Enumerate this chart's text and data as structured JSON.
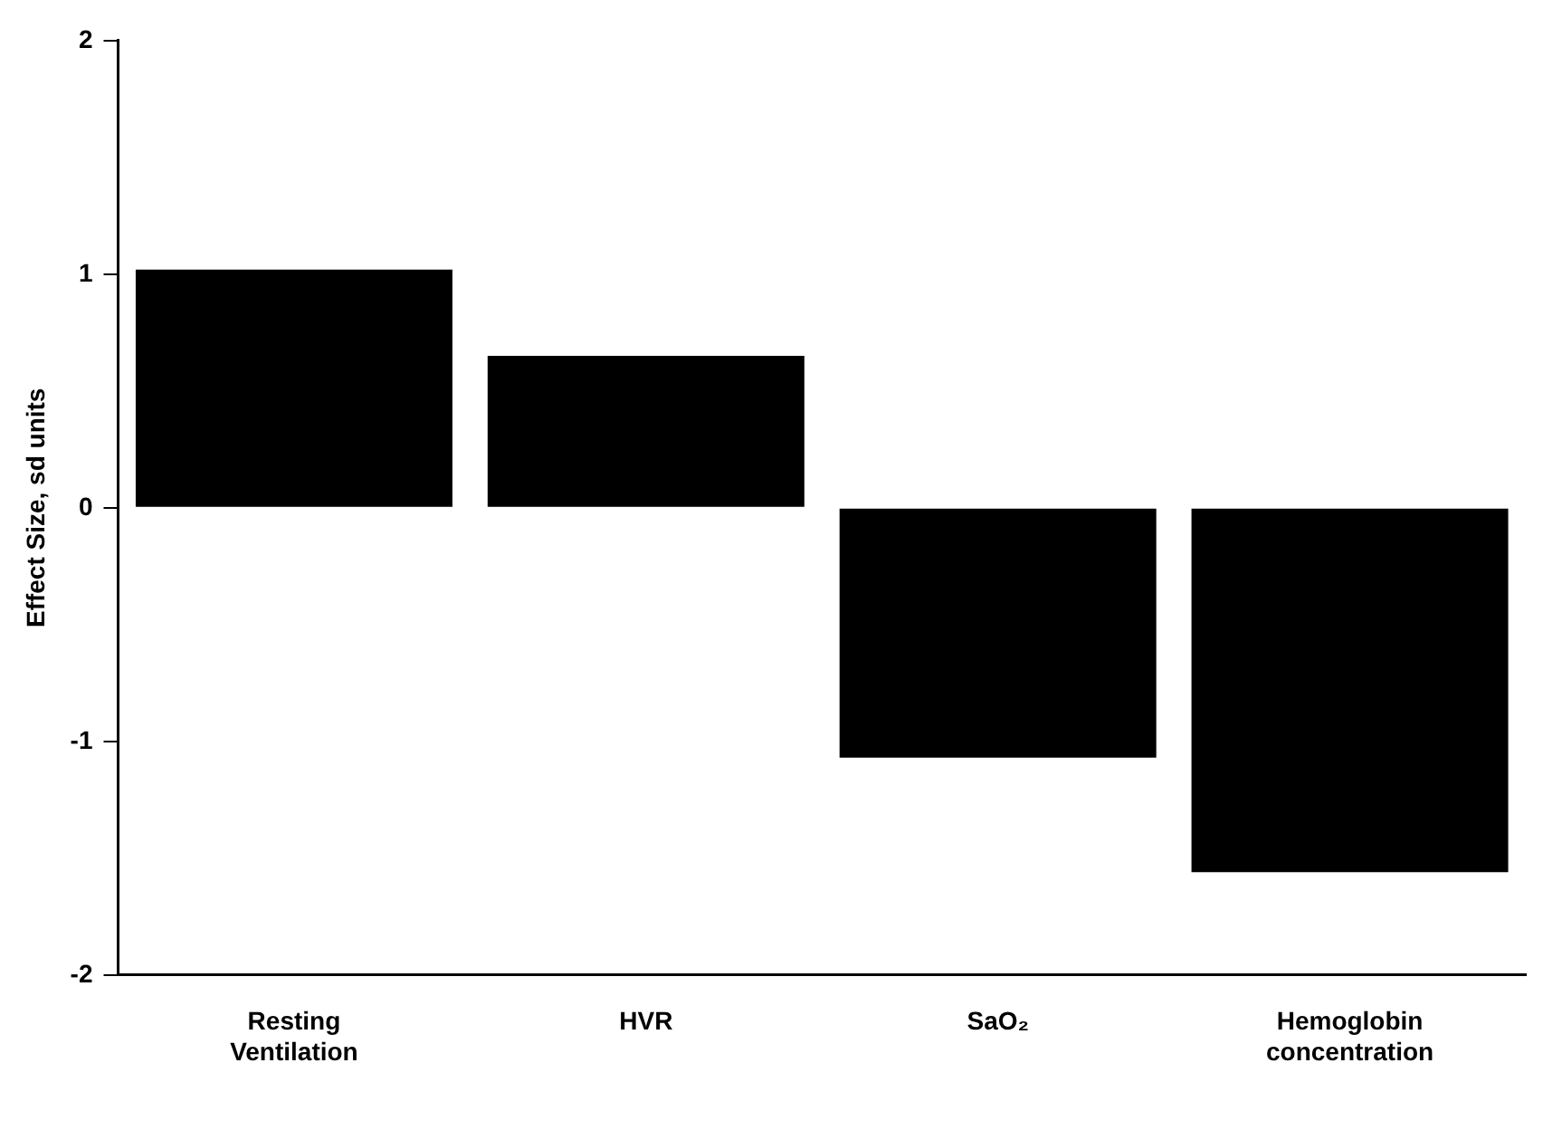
{
  "chart_data": {
    "type": "bar",
    "ylabel": "Effect Size, sd units",
    "categories": [
      "Resting Ventilation",
      "HVR",
      "SaO₂",
      "Hemoglobin concentration"
    ],
    "values": [
      1.02,
      0.65,
      -1.07,
      -1.56
    ],
    "color": "#000000",
    "ylim": [
      -2,
      2
    ],
    "yticks": [
      -2,
      -1,
      0,
      1,
      2
    ],
    "grid": false,
    "legend": false
  }
}
